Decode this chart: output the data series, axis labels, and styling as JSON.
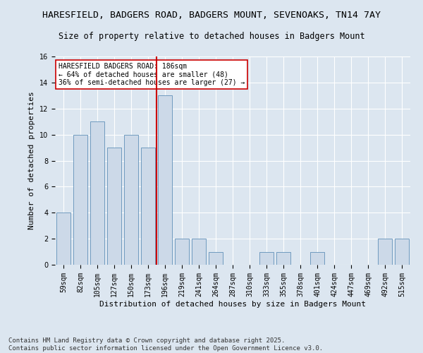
{
  "title1": "HARESFIELD, BADGERS ROAD, BADGERS MOUNT, SEVENOAKS, TN14 7AY",
  "title2": "Size of property relative to detached houses in Badgers Mount",
  "xlabel": "Distribution of detached houses by size in Badgers Mount",
  "ylabel": "Number of detached properties",
  "categories": [
    "59sqm",
    "82sqm",
    "105sqm",
    "127sqm",
    "150sqm",
    "173sqm",
    "196sqm",
    "219sqm",
    "241sqm",
    "264sqm",
    "287sqm",
    "310sqm",
    "333sqm",
    "355sqm",
    "378sqm",
    "401sqm",
    "424sqm",
    "447sqm",
    "469sqm",
    "492sqm",
    "515sqm"
  ],
  "values": [
    4,
    10,
    11,
    9,
    10,
    9,
    13,
    2,
    2,
    1,
    0,
    0,
    1,
    1,
    0,
    1,
    0,
    0,
    0,
    2,
    2
  ],
  "bar_color": "#ccd9e8",
  "bar_edge_color": "#6090b8",
  "vline_index": 5,
  "vline_color": "#cc0000",
  "annotation_text": "HARESFIELD BADGERS ROAD: 186sqm\n← 64% of detached houses are smaller (48)\n36% of semi-detached houses are larger (27) →",
  "annotation_box_color": "#ffffff",
  "annotation_box_edge": "#cc0000",
  "ylim": [
    0,
    16
  ],
  "yticks": [
    0,
    2,
    4,
    6,
    8,
    10,
    12,
    14,
    16
  ],
  "footnote": "Contains HM Land Registry data © Crown copyright and database right 2025.\nContains public sector information licensed under the Open Government Licence v3.0.",
  "background_color": "#dce6f0",
  "plot_background": "#dce6f0",
  "grid_color": "#ffffff",
  "title_fontsize": 9.5,
  "subtitle_fontsize": 8.5,
  "axis_label_fontsize": 8,
  "tick_fontsize": 7,
  "footnote_fontsize": 6.5
}
